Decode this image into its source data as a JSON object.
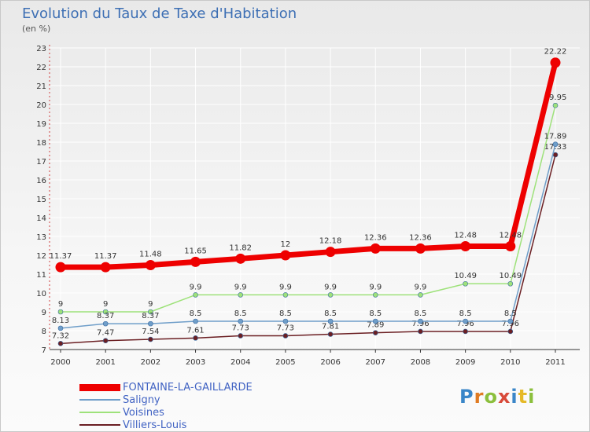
{
  "chart_data": {
    "type": "line",
    "title": "Evolution du Taux de Taxe d'Habitation",
    "subtitle": "(en %)",
    "x": [
      "2000",
      "2001",
      "2002",
      "2003",
      "2004",
      "2005",
      "2006",
      "2007",
      "2008",
      "2009",
      "2010",
      "2011"
    ],
    "ylim": [
      7,
      23
    ],
    "yticks": [
      "7",
      "8",
      "9",
      "10",
      "11",
      "12",
      "13",
      "14",
      "15",
      "16",
      "17",
      "18",
      "19",
      "20",
      "21",
      "22",
      "23"
    ],
    "series": [
      {
        "name": "Villiers-Louis",
        "color": "#6b1f23",
        "values": [
          7.32,
          7.47,
          7.54,
          7.61,
          7.73,
          7.73,
          7.81,
          7.89,
          7.96,
          7.96,
          7.96,
          17.33
        ],
        "labels": [
          "7.32",
          "7.47",
          "7.54",
          "7.61",
          "7.73",
          "7.73",
          "7.81",
          "7.89",
          "7.96",
          "7.96",
          "7.96",
          "17.33"
        ]
      },
      {
        "name": "Voisines",
        "color": "#9ee27a",
        "values": [
          9,
          9,
          9,
          9.9,
          9.9,
          9.9,
          9.9,
          9.9,
          9.9,
          10.49,
          10.49,
          19.95
        ],
        "labels": [
          "9",
          "9",
          "9",
          "9.9",
          "9.9",
          "9.9",
          "9.9",
          "9.9",
          "9.9",
          "10.49",
          "10.49",
          "19.95"
        ]
      },
      {
        "name": "Saligny",
        "color": "#6f9ec9",
        "values": [
          8.13,
          8.37,
          8.37,
          8.5,
          8.5,
          8.5,
          8.5,
          8.5,
          8.5,
          8.5,
          8.5,
          17.89
        ],
        "labels": [
          "8.13",
          "8.37",
          "8.37",
          "8.5",
          "8.5",
          "8.5",
          "8.5",
          "8.5",
          "8.5",
          "8.5",
          "8.5",
          "17.89"
        ]
      },
      {
        "name": "FONTAINE-LA-GAILLARDE",
        "color": "#ee0000",
        "values": [
          11.37,
          11.37,
          11.48,
          11.65,
          11.82,
          12,
          12.18,
          12.36,
          12.36,
          12.48,
          12.48,
          22.22
        ],
        "labels": [
          "11.37",
          "11.37",
          "11.48",
          "11.65",
          "11.82",
          "12",
          "12.18",
          "12.36",
          "12.36",
          "12.48",
          "12.48",
          "22.22"
        ]
      }
    ],
    "legend": [
      "FONTAINE-LA-GAILLARDE",
      "Saligny",
      "Voisines",
      "Villiers-Louis"
    ]
  },
  "brand": {
    "letters": [
      "P",
      "r",
      "o",
      "x",
      "i",
      "t",
      "i"
    ]
  }
}
